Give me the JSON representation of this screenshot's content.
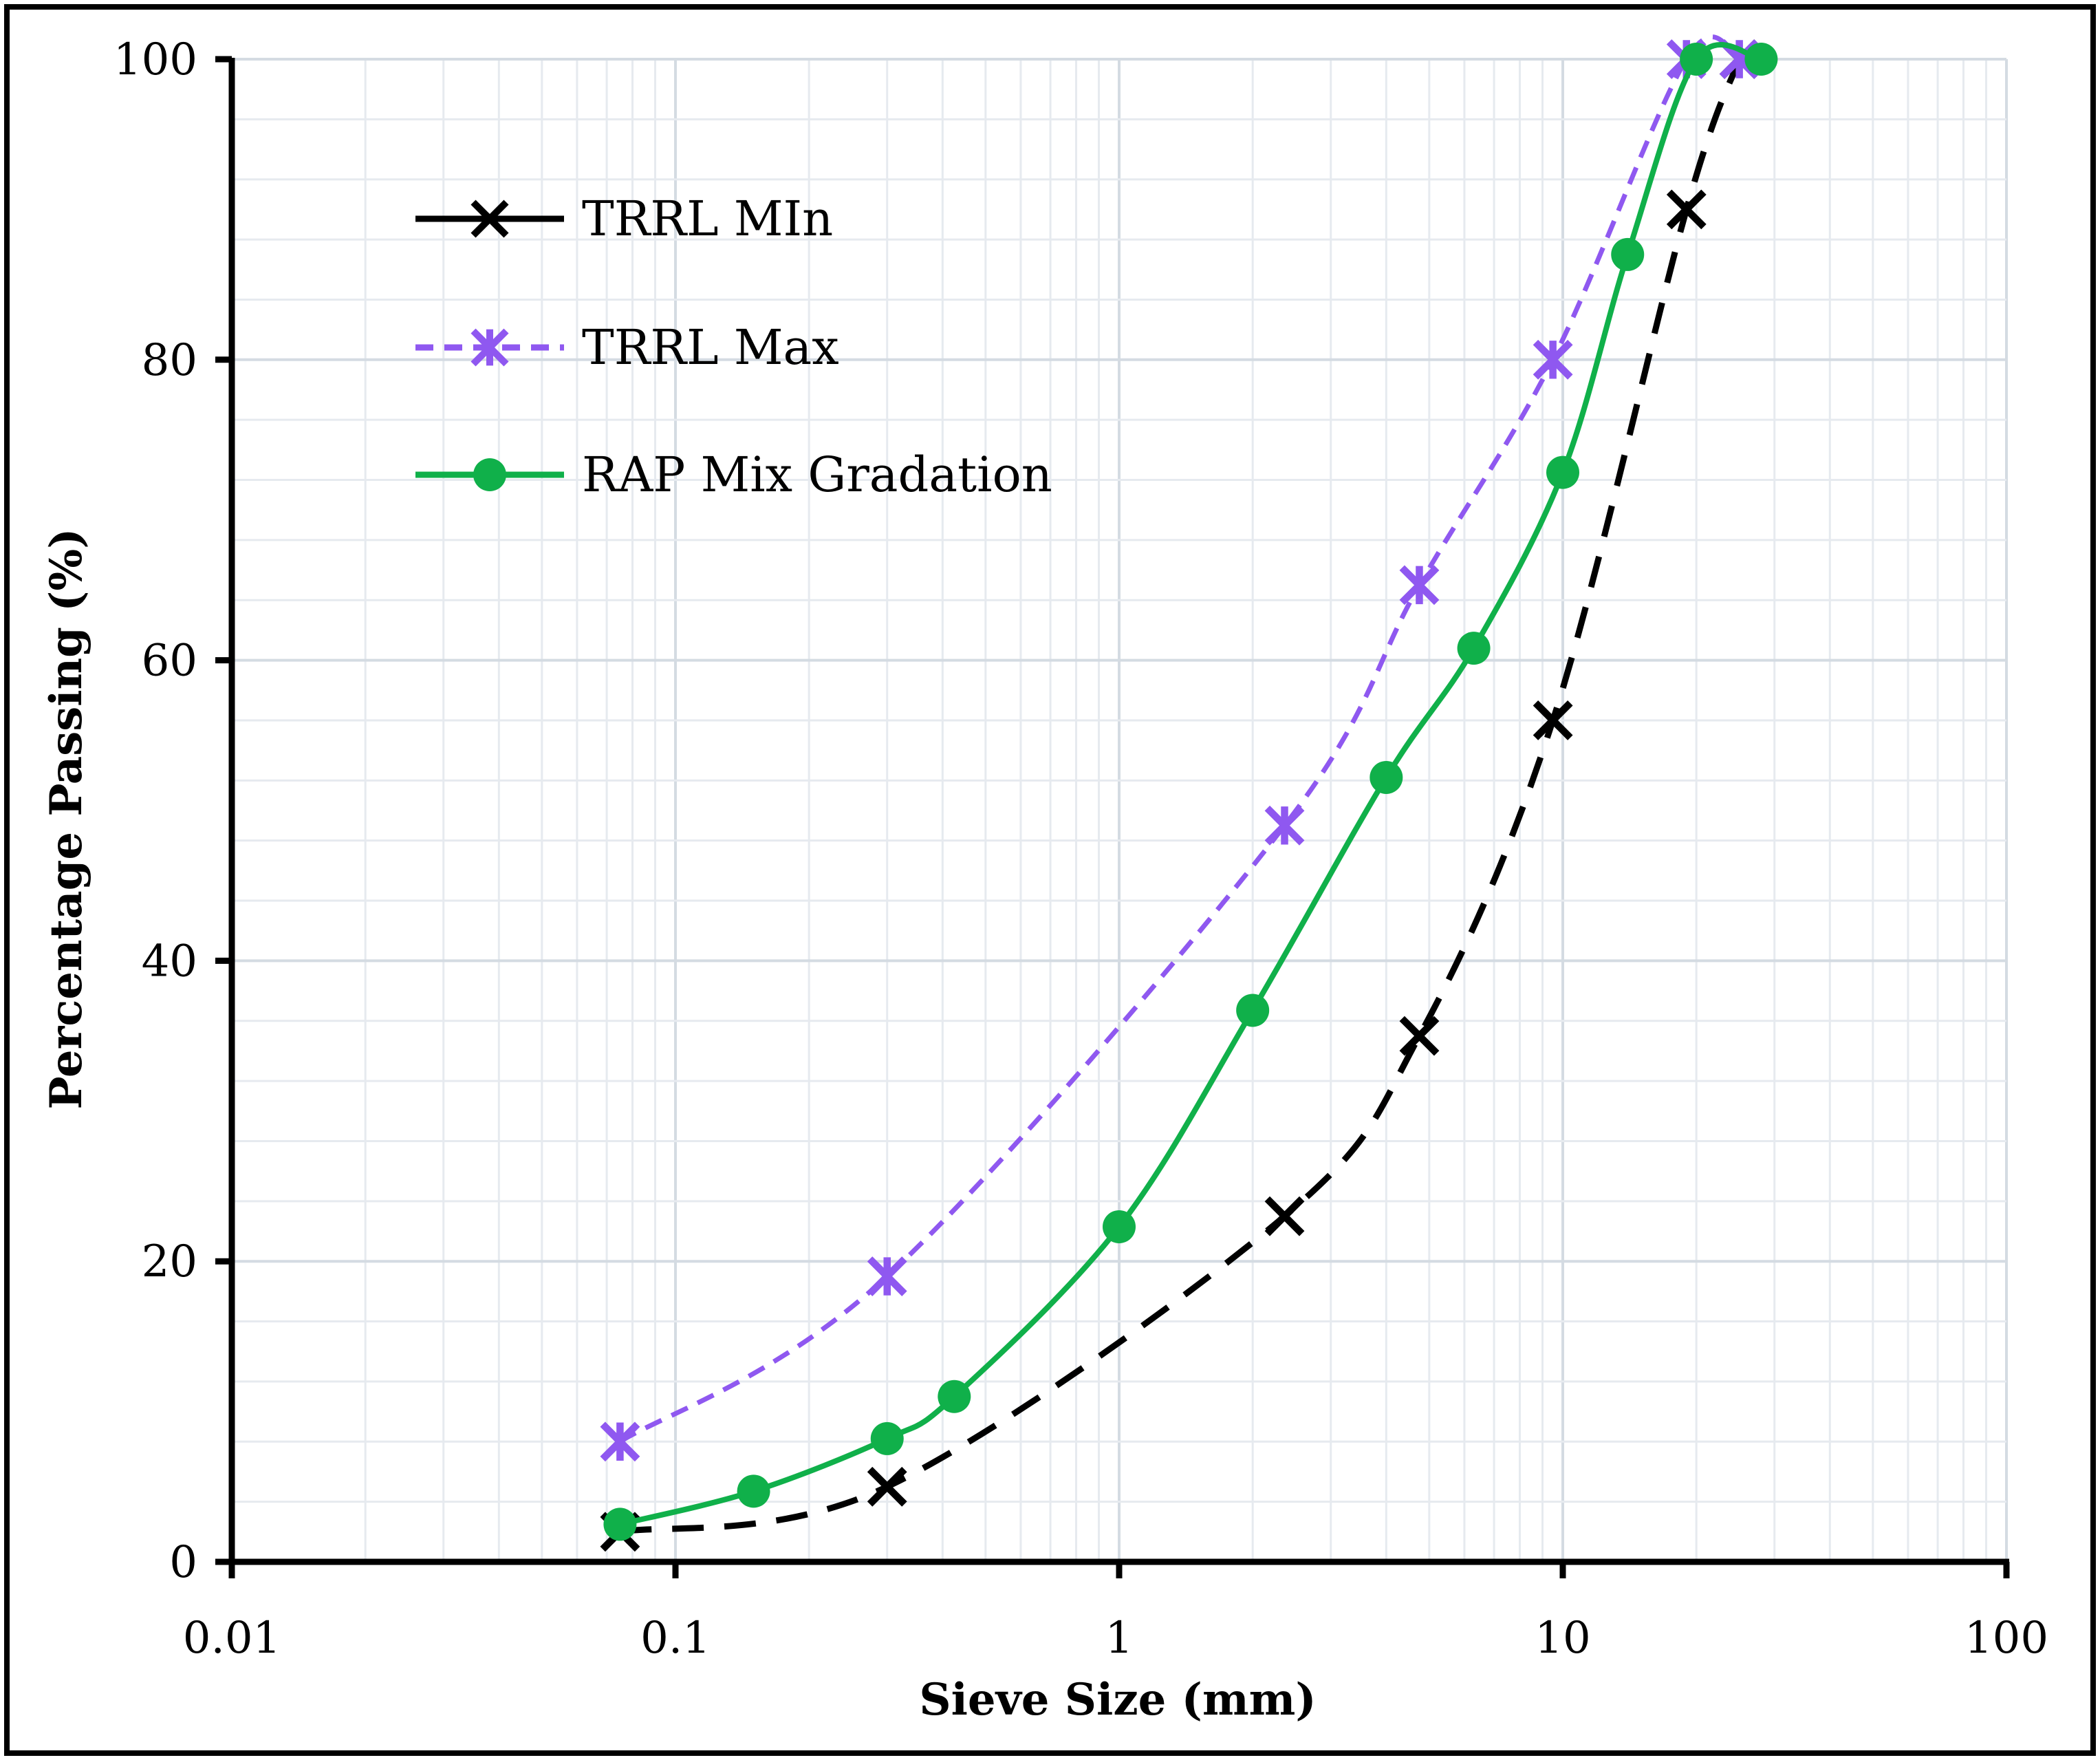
{
  "chart_data": {
    "type": "line",
    "xscale": "log",
    "xlabel": "Sieve Size (mm)",
    "ylabel": "Percentage Passing (%)",
    "xlim": [
      0.01,
      100
    ],
    "ylim": [
      0,
      100
    ],
    "xticks": [
      0.01,
      0.1,
      1,
      10,
      100
    ],
    "xtick_labels": [
      "0.01",
      "0.1",
      "1",
      "10",
      "100"
    ],
    "yticks": [
      0,
      20,
      40,
      60,
      80,
      100
    ],
    "ytick_labels": [
      "0",
      "20",
      "40",
      "60",
      "80",
      "100"
    ],
    "grid": true,
    "legend_position": "top-left",
    "series": [
      {
        "name": "TRRL MIn",
        "color": "#000000",
        "line_style": "dashed",
        "marker": "x",
        "x": [
          0.075,
          0.3,
          2.36,
          4.75,
          9.5,
          19,
          25
        ],
        "y": [
          2,
          5,
          23,
          35,
          56,
          90,
          100
        ]
      },
      {
        "name": "TRRL Max",
        "color": "#8f58f0",
        "line_style": "dashed",
        "marker": "star",
        "x": [
          0.075,
          0.3,
          2.36,
          4.75,
          9.5,
          19,
          25
        ],
        "y": [
          8,
          19,
          49,
          65,
          80,
          100,
          100
        ]
      },
      {
        "name": "RAP Mix Gradation",
        "color": "#10b04a",
        "line_style": "solid",
        "marker": "circle",
        "x": [
          0.075,
          0.15,
          0.3,
          0.425,
          1,
          2,
          4,
          6.3,
          10,
          14,
          20,
          28
        ],
        "y": [
          2.5,
          4.7,
          8.2,
          11,
          22.3,
          36.7,
          52.2,
          60.8,
          72.5,
          87,
          100,
          100
        ]
      }
    ]
  }
}
